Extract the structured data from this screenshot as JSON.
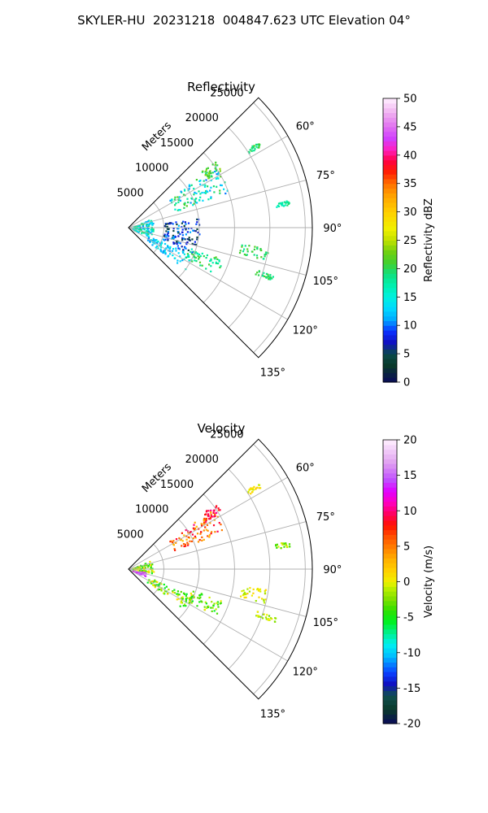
{
  "suptitle": "SKYLER-HU  20231218  004847.623 UTC Elevation 04°",
  "chart_data": [
    {
      "type": "heatmap",
      "subtype": "polar-sector",
      "title": "Reflectivity",
      "radial_label": "Meters",
      "radial_ticks": [
        5000,
        10000,
        15000,
        20000,
        25000
      ],
      "radial_tick_labels": [
        "5000",
        "10000",
        "15000",
        "20000",
        "25000"
      ],
      "rmax": 26000,
      "azimuth_range_deg": [
        45,
        135
      ],
      "azimuth_ticks_deg": [
        60,
        75,
        90,
        105,
        120,
        135
      ],
      "azimuth_tick_labels": [
        "60°",
        "75°",
        "90°",
        "105°",
        "120°",
        "135°"
      ],
      "grid": true,
      "colorbar": {
        "label": "Reflectivity dBZ",
        "range": [
          0,
          50
        ],
        "ticks": [
          0,
          5,
          10,
          15,
          20,
          25,
          30,
          35,
          40,
          45,
          50
        ],
        "tick_labels": [
          "0",
          "5",
          "10",
          "15",
          "20",
          "25",
          "30",
          "35",
          "40",
          "45",
          "50"
        ],
        "colormap": "pyart_HomeyerRainbow"
      },
      "echo_regions": [
        {
          "az": [
            54,
            70
          ],
          "r": [
            7000,
            15000
          ],
          "value_range": [
            10,
            22
          ]
        },
        {
          "az": [
            52,
            58
          ],
          "r": [
            13000,
            15500
          ],
          "value_range": [
            18,
            24
          ]
        },
        {
          "az": [
            68,
            112
          ],
          "r": [
            500,
            3500
          ],
          "value_range": [
            10,
            20
          ]
        },
        {
          "az": [
            112,
            126
          ],
          "r": [
            3000,
            10000
          ],
          "value_range": [
            10,
            16
          ]
        },
        {
          "az": [
            108,
            118
          ],
          "r": [
            9000,
            14000
          ],
          "value_range": [
            16,
            22
          ]
        },
        {
          "az": [
            82,
            112
          ],
          "r": [
            5000,
            10000
          ],
          "value_range": [
            3,
            12
          ]
        },
        {
          "az": [
            98,
            104
          ],
          "r": [
            16000,
            20000
          ],
          "value_range": [
            18,
            22
          ]
        },
        {
          "az": [
            108,
            110
          ],
          "r": [
            19000,
            22000
          ],
          "value_range": [
            18,
            22
          ]
        },
        {
          "az": [
            80,
            82
          ],
          "r": [
            21000,
            23000
          ],
          "value_range": [
            16,
            20
          ]
        },
        {
          "az": [
            56,
            58
          ],
          "r": [
            20000,
            22000
          ],
          "value_range": [
            18,
            22
          ]
        }
      ]
    },
    {
      "type": "heatmap",
      "subtype": "polar-sector",
      "title": "Velocity",
      "radial_label": "Meters",
      "radial_ticks": [
        5000,
        10000,
        15000,
        20000,
        25000
      ],
      "radial_tick_labels": [
        "5000",
        "10000",
        "15000",
        "20000",
        "25000"
      ],
      "rmax": 26000,
      "azimuth_range_deg": [
        45,
        135
      ],
      "azimuth_ticks_deg": [
        60,
        75,
        90,
        105,
        120,
        135
      ],
      "azimuth_tick_labels": [
        "60°",
        "75°",
        "90°",
        "105°",
        "120°",
        "135°"
      ],
      "grid": true,
      "colorbar": {
        "label": "Velocity (m/s)",
        "range": [
          -20,
          20
        ],
        "ticks": [
          -20,
          -15,
          -10,
          -5,
          0,
          5,
          10,
          15,
          20
        ],
        "tick_labels": [
          "-20",
          "-15",
          "-10",
          "-5",
          "0",
          "5",
          "10",
          "15",
          "20"
        ],
        "colormap": "pyart_BuDRd18"
      },
      "echo_regions": [
        {
          "az": [
            54,
            68
          ],
          "r": [
            7000,
            15000
          ],
          "value_range": [
            2,
            10
          ]
        },
        {
          "az": [
            52,
            58
          ],
          "r": [
            12500,
            15500
          ],
          "value_range": [
            6,
            11
          ]
        },
        {
          "az": [
            68,
            100
          ],
          "r": [
            500,
            3500
          ],
          "value_range": [
            -6,
            2
          ]
        },
        {
          "az": [
            100,
            112
          ],
          "r": [
            500,
            2500
          ],
          "value_range": [
            12,
            17
          ]
        },
        {
          "az": [
            112,
            126
          ],
          "r": [
            3000,
            10000
          ],
          "value_range": [
            -6,
            2
          ]
        },
        {
          "az": [
            108,
            118
          ],
          "r": [
            9000,
            14000
          ],
          "value_range": [
            -6,
            1
          ]
        },
        {
          "az": [
            98,
            104
          ],
          "r": [
            16000,
            20000
          ],
          "value_range": [
            -2,
            2
          ]
        },
        {
          "az": [
            108,
            110
          ],
          "r": [
            19000,
            22000
          ],
          "value_range": [
            -3,
            1
          ]
        },
        {
          "az": [
            80,
            82
          ],
          "r": [
            21000,
            23000
          ],
          "value_range": [
            -4,
            0
          ]
        },
        {
          "az": [
            56,
            58
          ],
          "r": [
            20000,
            22000
          ],
          "value_range": [
            -1,
            2
          ]
        }
      ]
    }
  ]
}
